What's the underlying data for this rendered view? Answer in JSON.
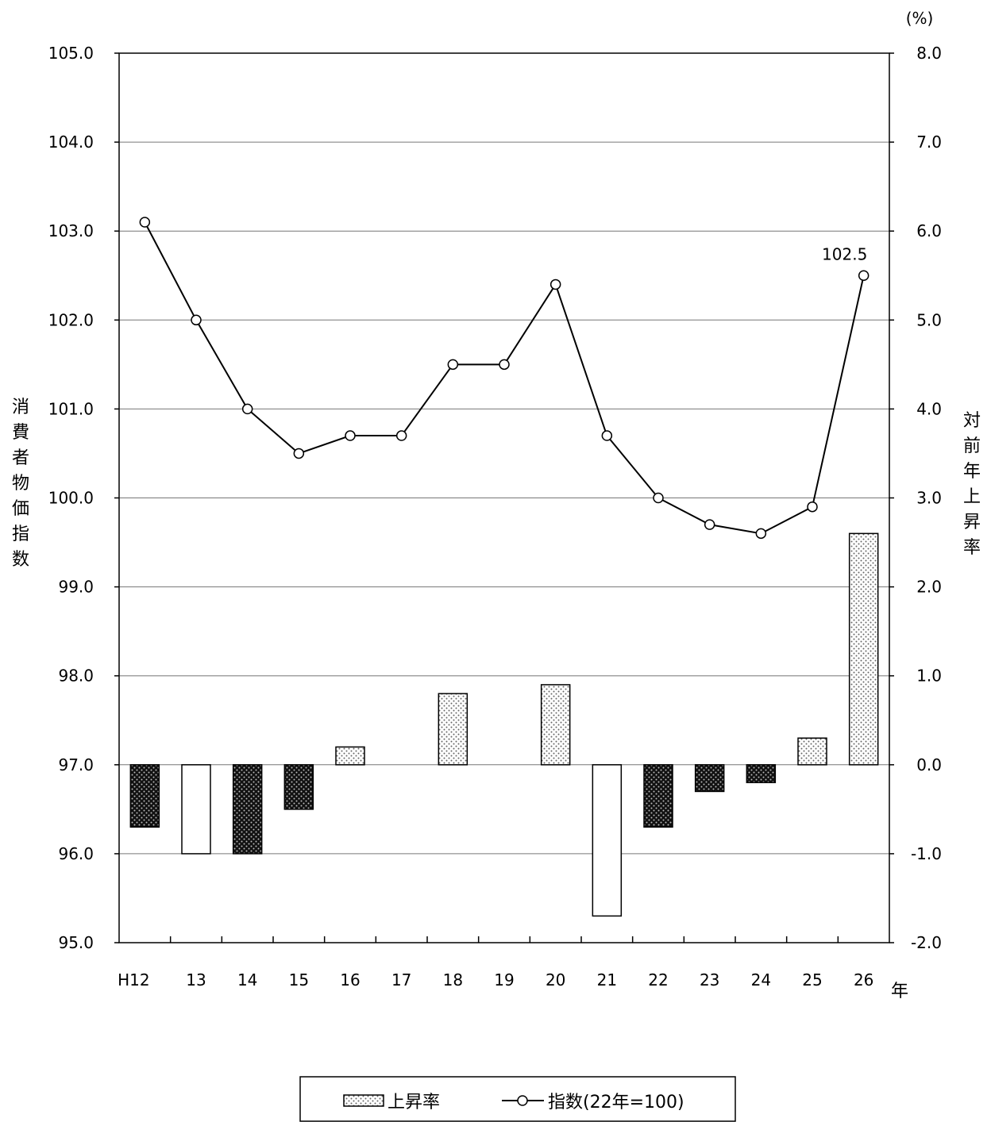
{
  "chart_data": {
    "type": "bar+line",
    "left_axis": {
      "label": "消費者物価指数",
      "range": [
        95.0,
        105.0
      ],
      "ticks": [
        "105.0",
        "104.0",
        "103.0",
        "102.0",
        "101.0",
        "100.0",
        "99.0",
        "98.0",
        "97.0",
        "96.0",
        "95.0"
      ]
    },
    "right_axis": {
      "label": "対前年上昇率",
      "unit": "(%)",
      "range": [
        -2.0,
        8.0
      ],
      "ticks": [
        "8.0",
        "7.0",
        "6.0",
        "5.0",
        "4.0",
        "3.0",
        "2.0",
        "1.0",
        "0.0",
        "-1.0",
        "-2.0"
      ]
    },
    "categories": [
      "H12",
      "13",
      "14",
      "15",
      "16",
      "17",
      "18",
      "19",
      "20",
      "21",
      "22",
      "23",
      "24",
      "25",
      "26"
    ],
    "x_unit": "年",
    "grid": "horizontal",
    "series": [
      {
        "name": "上昇率",
        "type": "bar",
        "axis": "right",
        "values": [
          -0.7,
          -1.0,
          -1.0,
          -0.5,
          0.2,
          0.0,
          0.8,
          0.0,
          0.9,
          -1.7,
          -0.7,
          -0.3,
          -0.2,
          0.3,
          2.6
        ],
        "fill_styles": [
          "dark",
          "white",
          "dark",
          "dark",
          "light",
          "none",
          "light",
          "none",
          "light",
          "white",
          "dark",
          "dark",
          "dark",
          "light",
          "light"
        ]
      },
      {
        "name": "指数(22年=100)",
        "type": "line",
        "axis": "left",
        "values": [
          103.1,
          102.0,
          101.0,
          100.5,
          100.7,
          100.7,
          101.5,
          101.5,
          102.4,
          100.7,
          100.0,
          99.7,
          99.6,
          99.9,
          102.5
        ]
      }
    ],
    "annotations": [
      {
        "category": "26",
        "text": "102.5"
      }
    ],
    "legend": {
      "placement": "bottom"
    }
  }
}
